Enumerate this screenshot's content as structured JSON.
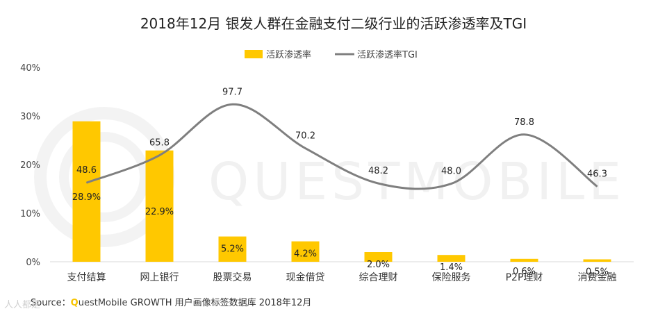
{
  "title": "2018年12月 银发人群在金融支付二级行业的活跃渗透率及TGI",
  "legend": {
    "bar": "活跃渗透率",
    "line": "活跃渗透率TGI"
  },
  "watermark": "QUESTMOBILE",
  "colors": {
    "bar": "#FFC800",
    "line": "#7f7f7f",
    "grid": "#d9d9d9"
  },
  "source": {
    "prefix": "Source：",
    "brand_q": "Q",
    "brand_rest": "uestMobile",
    "suffix": " GROWTH 用户画像标签数据库 2018年12月"
  },
  "corner_mark": "人人都是",
  "chart_data": {
    "type": "bar",
    "categories": [
      "支付结算",
      "网上银行",
      "股票交易",
      "现金借贷",
      "综合理财",
      "保险服务",
      "P2P理财",
      "消费金融"
    ],
    "y_ticks": [
      "0%",
      "10%",
      "20%",
      "30%",
      "40%"
    ],
    "ylim": [
      0,
      40
    ],
    "grid": false,
    "legend_position": "top",
    "series": [
      {
        "name": "活跃渗透率",
        "type": "bar",
        "values": [
          28.9,
          22.9,
          5.2,
          4.2,
          2.0,
          1.4,
          0.6,
          0.5
        ],
        "labels": [
          "28.9%",
          "22.9%",
          "5.2%",
          "4.2%",
          "2.0%",
          "1.4%",
          "0.6%",
          "0.5%"
        ]
      },
      {
        "name": "活跃渗透率TGI",
        "type": "line",
        "smooth": true,
        "values": [
          48.6,
          65.8,
          97.7,
          70.2,
          48.2,
          48.0,
          78.8,
          46.3
        ],
        "labels": [
          "48.6",
          "65.8",
          "97.7",
          "70.2",
          "48.2",
          "48.0",
          "78.8",
          "46.3"
        ]
      }
    ]
  }
}
